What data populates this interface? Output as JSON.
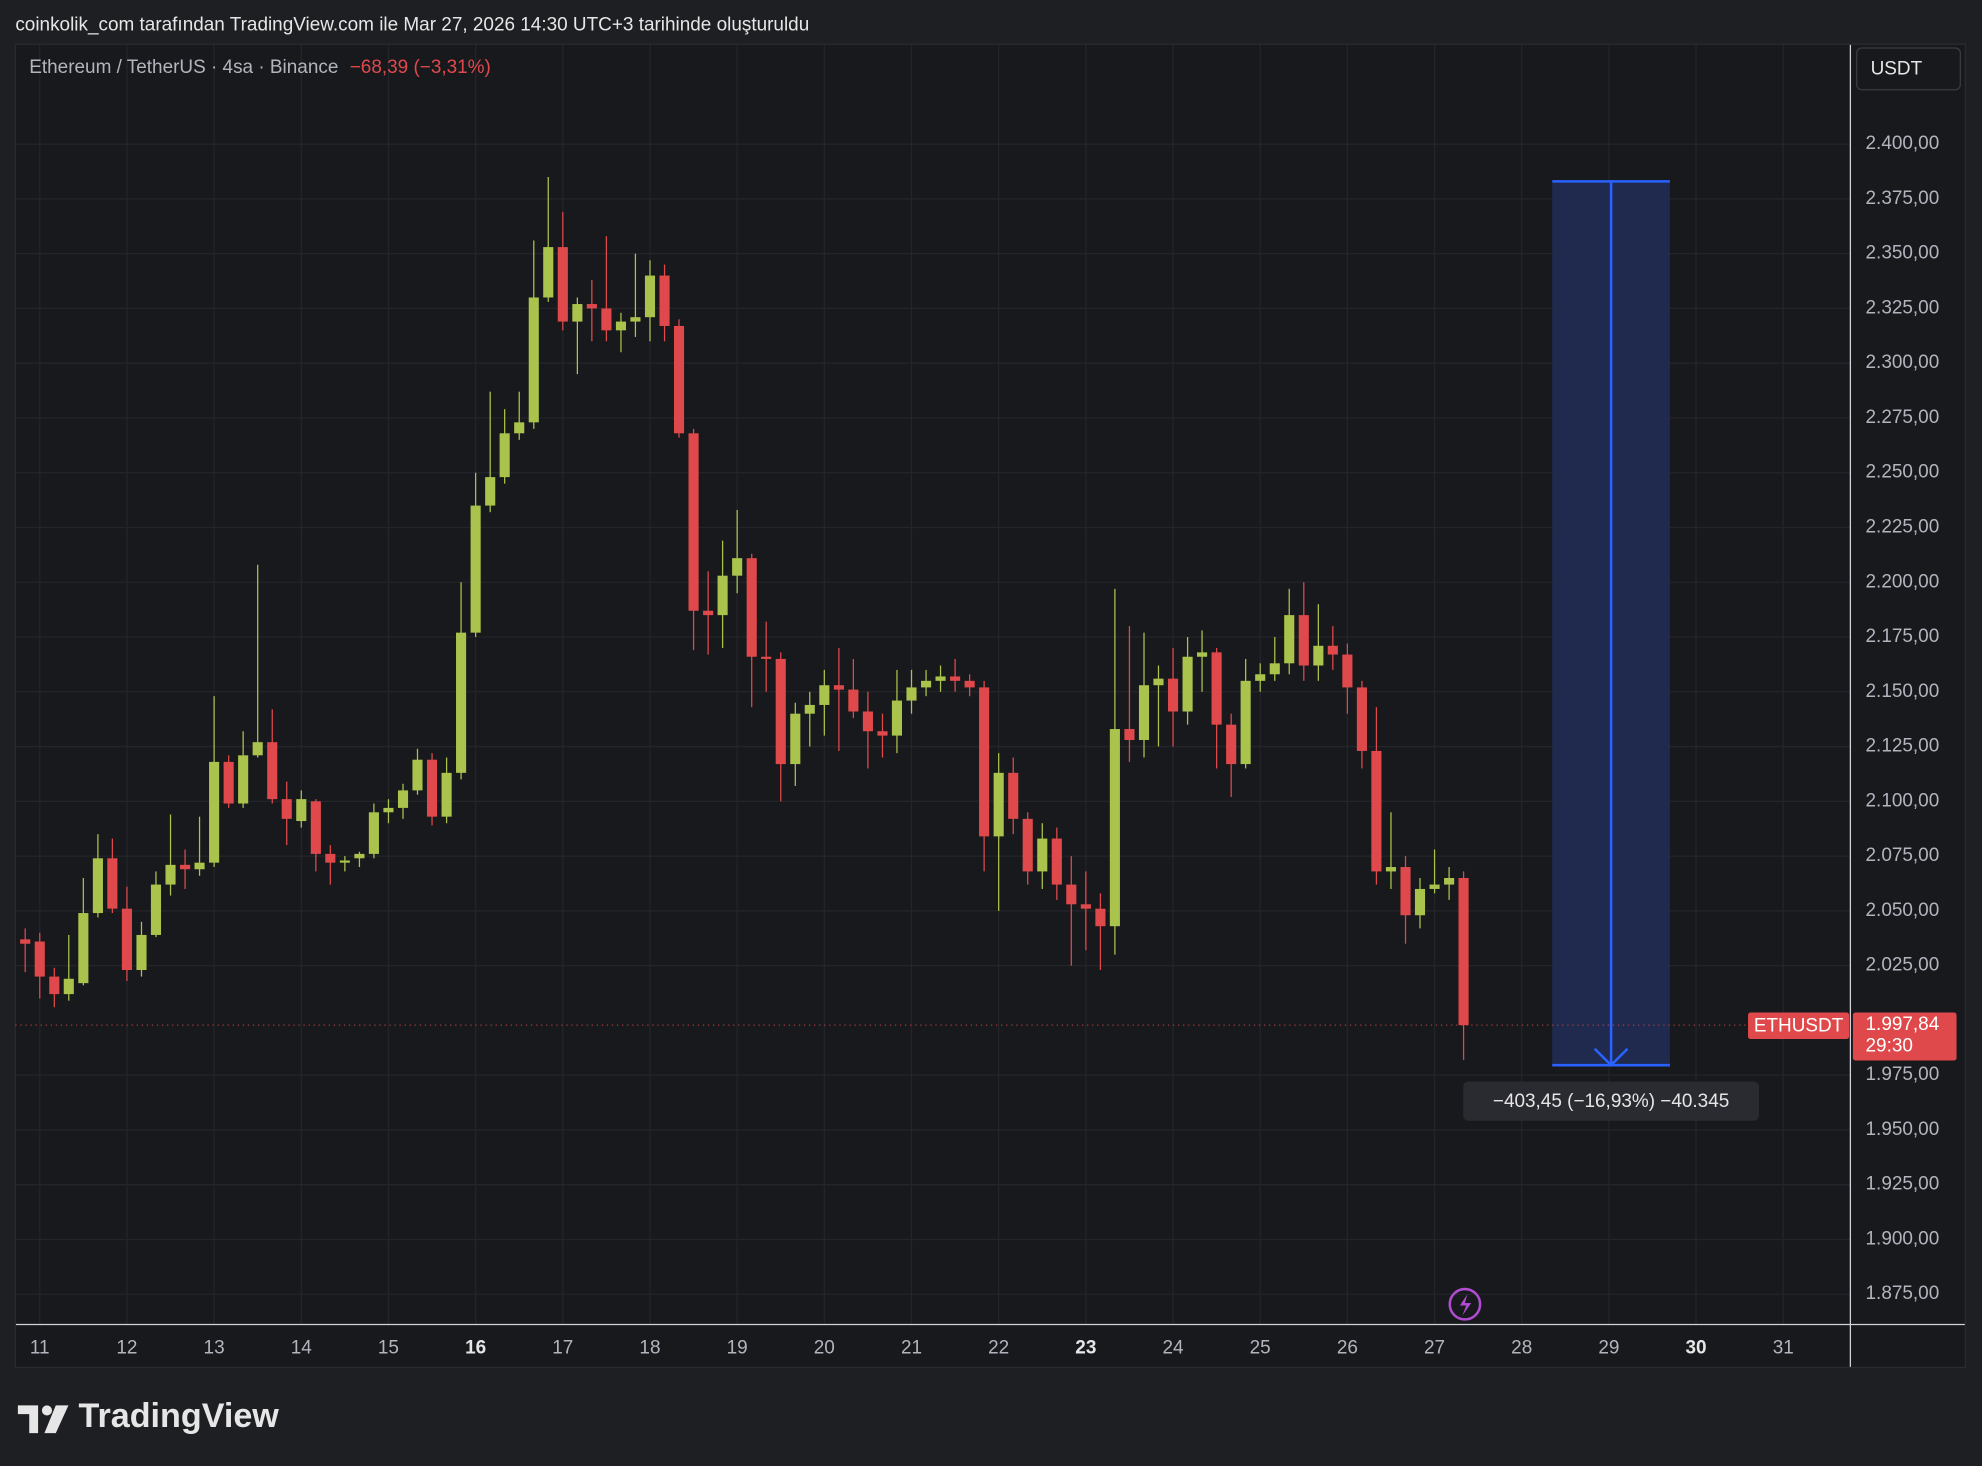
{
  "header": "coinkolik_com tarafından TradingView.com ile Mar 27, 2026 14:30 UTC+3 tarihinde oluşturuldu",
  "logo": "TradingView",
  "chart_data": {
    "type": "candlestick",
    "title": "Ethereum / TetherUS · 4sa · Binance",
    "change": "−68,39 (−3,31%)",
    "currency": "USDT",
    "up_color": "#a9c34c",
    "down_color": "#e0494b",
    "grid": true,
    "x": [
      10.833,
      11,
      11.167,
      11.333,
      11.5,
      11.667,
      11.833,
      12,
      12.167,
      12.333,
      12.5,
      12.667,
      12.833,
      13,
      13.167,
      13.333,
      13.5,
      13.667,
      13.833,
      14,
      14.167,
      14.333,
      14.5,
      14.667,
      14.833,
      15,
      15.167,
      15.333,
      15.5,
      15.667,
      15.833,
      16,
      16.167,
      16.333,
      16.5,
      16.667,
      16.833,
      17,
      17.167,
      17.333,
      17.5,
      17.667,
      17.833,
      18,
      18.167,
      18.333,
      18.5,
      18.667,
      18.833,
      19,
      19.167,
      19.333,
      19.5,
      19.667,
      19.833,
      20,
      20.167,
      20.333,
      20.5,
      20.667,
      20.833,
      21,
      21.167,
      21.333,
      21.5,
      21.667,
      21.833,
      22,
      22.167,
      22.333,
      22.5,
      22.667,
      22.833,
      23,
      23.167,
      23.333,
      23.5,
      23.667,
      23.833,
      24,
      24.167,
      24.333,
      24.5,
      24.667,
      24.833,
      25,
      25.167,
      25.333,
      25.5,
      25.667,
      25.833,
      26,
      26.167,
      26.333,
      26.5,
      26.667,
      26.833,
      27,
      27.167,
      27.333
    ],
    "open": [
      2037,
      2036,
      2020,
      2012,
      2017,
      2049,
      2074,
      2051,
      2023,
      2039,
      2062,
      2071,
      2069,
      2072,
      2118,
      2099,
      2121,
      2127,
      2101,
      2091,
      2100,
      2076,
      2072,
      2074,
      2076,
      2095,
      2097,
      2105,
      2119,
      2093,
      2113,
      2177,
      2235,
      2248,
      2268,
      2273,
      2330,
      2353,
      2319,
      2327,
      2325,
      2315,
      2319,
      2321,
      2340,
      2317,
      2268,
      2187,
      2185,
      2203,
      2211,
      2166,
      2165,
      2117,
      2140,
      2144,
      2153,
      2151,
      2141,
      2132,
      2130,
      2146,
      2152,
      2155,
      2157,
      2155,
      2152,
      2084,
      2113,
      2092,
      2068,
      2083,
      2062,
      2053,
      2051,
      2043,
      2133,
      2128,
      2153,
      2156,
      2141,
      2166,
      2168,
      2135,
      2117,
      2155,
      2158,
      2163,
      2185,
      2162,
      2171,
      2167,
      2152,
      2123,
      2068,
      2070,
      2048,
      2060,
      2062,
      2065
    ],
    "high": [
      2042,
      2040,
      2024,
      2039,
      2065,
      2085,
      2083,
      2061,
      2045,
      2068,
      2094,
      2078,
      2093,
      2148,
      2121,
      2132,
      2208,
      2142,
      2109,
      2105,
      2101,
      2080,
      2075,
      2077,
      2099,
      2101,
      2108,
      2124,
      2122,
      2120,
      2200,
      2250,
      2287,
      2279,
      2287,
      2356,
      2385,
      2369,
      2330,
      2338,
      2358,
      2323,
      2350,
      2347,
      2345,
      2320,
      2270,
      2205,
      2219,
      2233,
      2213,
      2182,
      2168,
      2145,
      2150,
      2160,
      2170,
      2165,
      2150,
      2140,
      2160,
      2160,
      2160,
      2162,
      2165,
      2158,
      2155,
      2122,
      2120,
      2095,
      2090,
      2088,
      2075,
      2068,
      2058,
      2197,
      2180,
      2177,
      2162,
      2170,
      2175,
      2178,
      2170,
      2140,
      2165,
      2163,
      2175,
      2197,
      2200,
      2190,
      2180,
      2172,
      2155,
      2143,
      2095,
      2075,
      2065,
      2078,
      2070,
      2068
    ],
    "low": [
      2022,
      2010,
      2006,
      2009,
      2016,
      2047,
      2049,
      2018,
      2020,
      2038,
      2057,
      2060,
      2066,
      2070,
      2097,
      2097,
      2120,
      2099,
      2080,
      2088,
      2068,
      2062,
      2068,
      2070,
      2074,
      2090,
      2092,
      2103,
      2089,
      2090,
      2110,
      2175,
      2232,
      2245,
      2265,
      2270,
      2328,
      2315,
      2295,
      2310,
      2310,
      2305,
      2312,
      2310,
      2310,
      2266,
      2169,
      2167,
      2170,
      2195,
      2143,
      2150,
      2100,
      2107,
      2125,
      2130,
      2123,
      2138,
      2115,
      2120,
      2122,
      2140,
      2148,
      2150,
      2150,
      2148,
      2068,
      2050,
      2085,
      2062,
      2060,
      2055,
      2025,
      2032,
      2023,
      2030,
      2118,
      2120,
      2125,
      2125,
      2135,
      2150,
      2115,
      2102,
      2115,
      2150,
      2155,
      2158,
      2155,
      2155,
      2160,
      2140,
      2115,
      2062,
      2060,
      2035,
      2042,
      2058,
      2055,
      1982
    ],
    "close": [
      2035,
      2020,
      2012,
      2019,
      2049,
      2074,
      2051,
      2023,
      2039,
      2062,
      2071,
      2069,
      2072,
      2118,
      2099,
      2121,
      2127,
      2101,
      2092,
      2101,
      2076,
      2072,
      2073,
      2076,
      2095,
      2097,
      2105,
      2119,
      2093,
      2113,
      2177,
      2235,
      2248,
      2268,
      2273,
      2330,
      2353,
      2319,
      2327,
      2325,
      2315,
      2319,
      2321,
      2340,
      2317,
      2268,
      2187,
      2185,
      2203,
      2211,
      2166,
      2165,
      2117,
      2140,
      2144,
      2153,
      2151,
      2141,
      2132,
      2130,
      2146,
      2152,
      2155,
      2157,
      2155,
      2152,
      2084,
      2113,
      2092,
      2068,
      2083,
      2062,
      2053,
      2051,
      2043,
      2133,
      2128,
      2153,
      2156,
      2141,
      2166,
      2168,
      2135,
      2117,
      2155,
      2158,
      2163,
      2185,
      2162,
      2171,
      2167,
      2152,
      2123,
      2068,
      2070,
      2048,
      2060,
      2062,
      2065,
      1997.84
    ],
    "xlim": [
      10.72,
      31.77
    ],
    "xticks": [
      11,
      12,
      13,
      14,
      15,
      16,
      17,
      18,
      19,
      20,
      21,
      22,
      23,
      24,
      25,
      26,
      27,
      28,
      29,
      30,
      31
    ],
    "xticks_bold": [
      16,
      23,
      30
    ],
    "ylim": [
      1861.2,
      2445.6
    ],
    "yticks": [
      {
        "value": 1875,
        "label": "1.875,00"
      },
      {
        "value": 1900,
        "label": "1.900,00"
      },
      {
        "value": 1925,
        "label": "1.925,00"
      },
      {
        "value": 1950,
        "label": "1.950,00"
      },
      {
        "value": 1975,
        "label": "1.975,00"
      },
      {
        "value": 2025,
        "label": "2.025,00"
      },
      {
        "value": 2050,
        "label": "2.050,00"
      },
      {
        "value": 2075,
        "label": "2.075,00"
      },
      {
        "value": 2100,
        "label": "2.100,00"
      },
      {
        "value": 2125,
        "label": "2.125,00"
      },
      {
        "value": 2150,
        "label": "2.150,00"
      },
      {
        "value": 2175,
        "label": "2.175,00"
      },
      {
        "value": 2200,
        "label": "2.200,00"
      },
      {
        "value": 2225,
        "label": "2.225,00"
      },
      {
        "value": 2250,
        "label": "2.250,00"
      },
      {
        "value": 2275,
        "label": "2.275,00"
      },
      {
        "value": 2300,
        "label": "2.300,00"
      },
      {
        "value": 2325,
        "label": "2.325,00"
      },
      {
        "value": 2350,
        "label": "2.350,00"
      },
      {
        "value": 2375,
        "label": "2.375,00"
      },
      {
        "value": 2400,
        "label": "2.400,00"
      }
    ],
    "last_price": {
      "value": 1997.84,
      "label": "1.997,84",
      "symbol": "ETHUSDT",
      "countdown": "29:30"
    },
    "measure": {
      "from": 2383,
      "to": 1979.55,
      "x_start": 28.35,
      "x_end": 29.7,
      "label": "−403,45 (−16,93%) −40.345"
    }
  }
}
